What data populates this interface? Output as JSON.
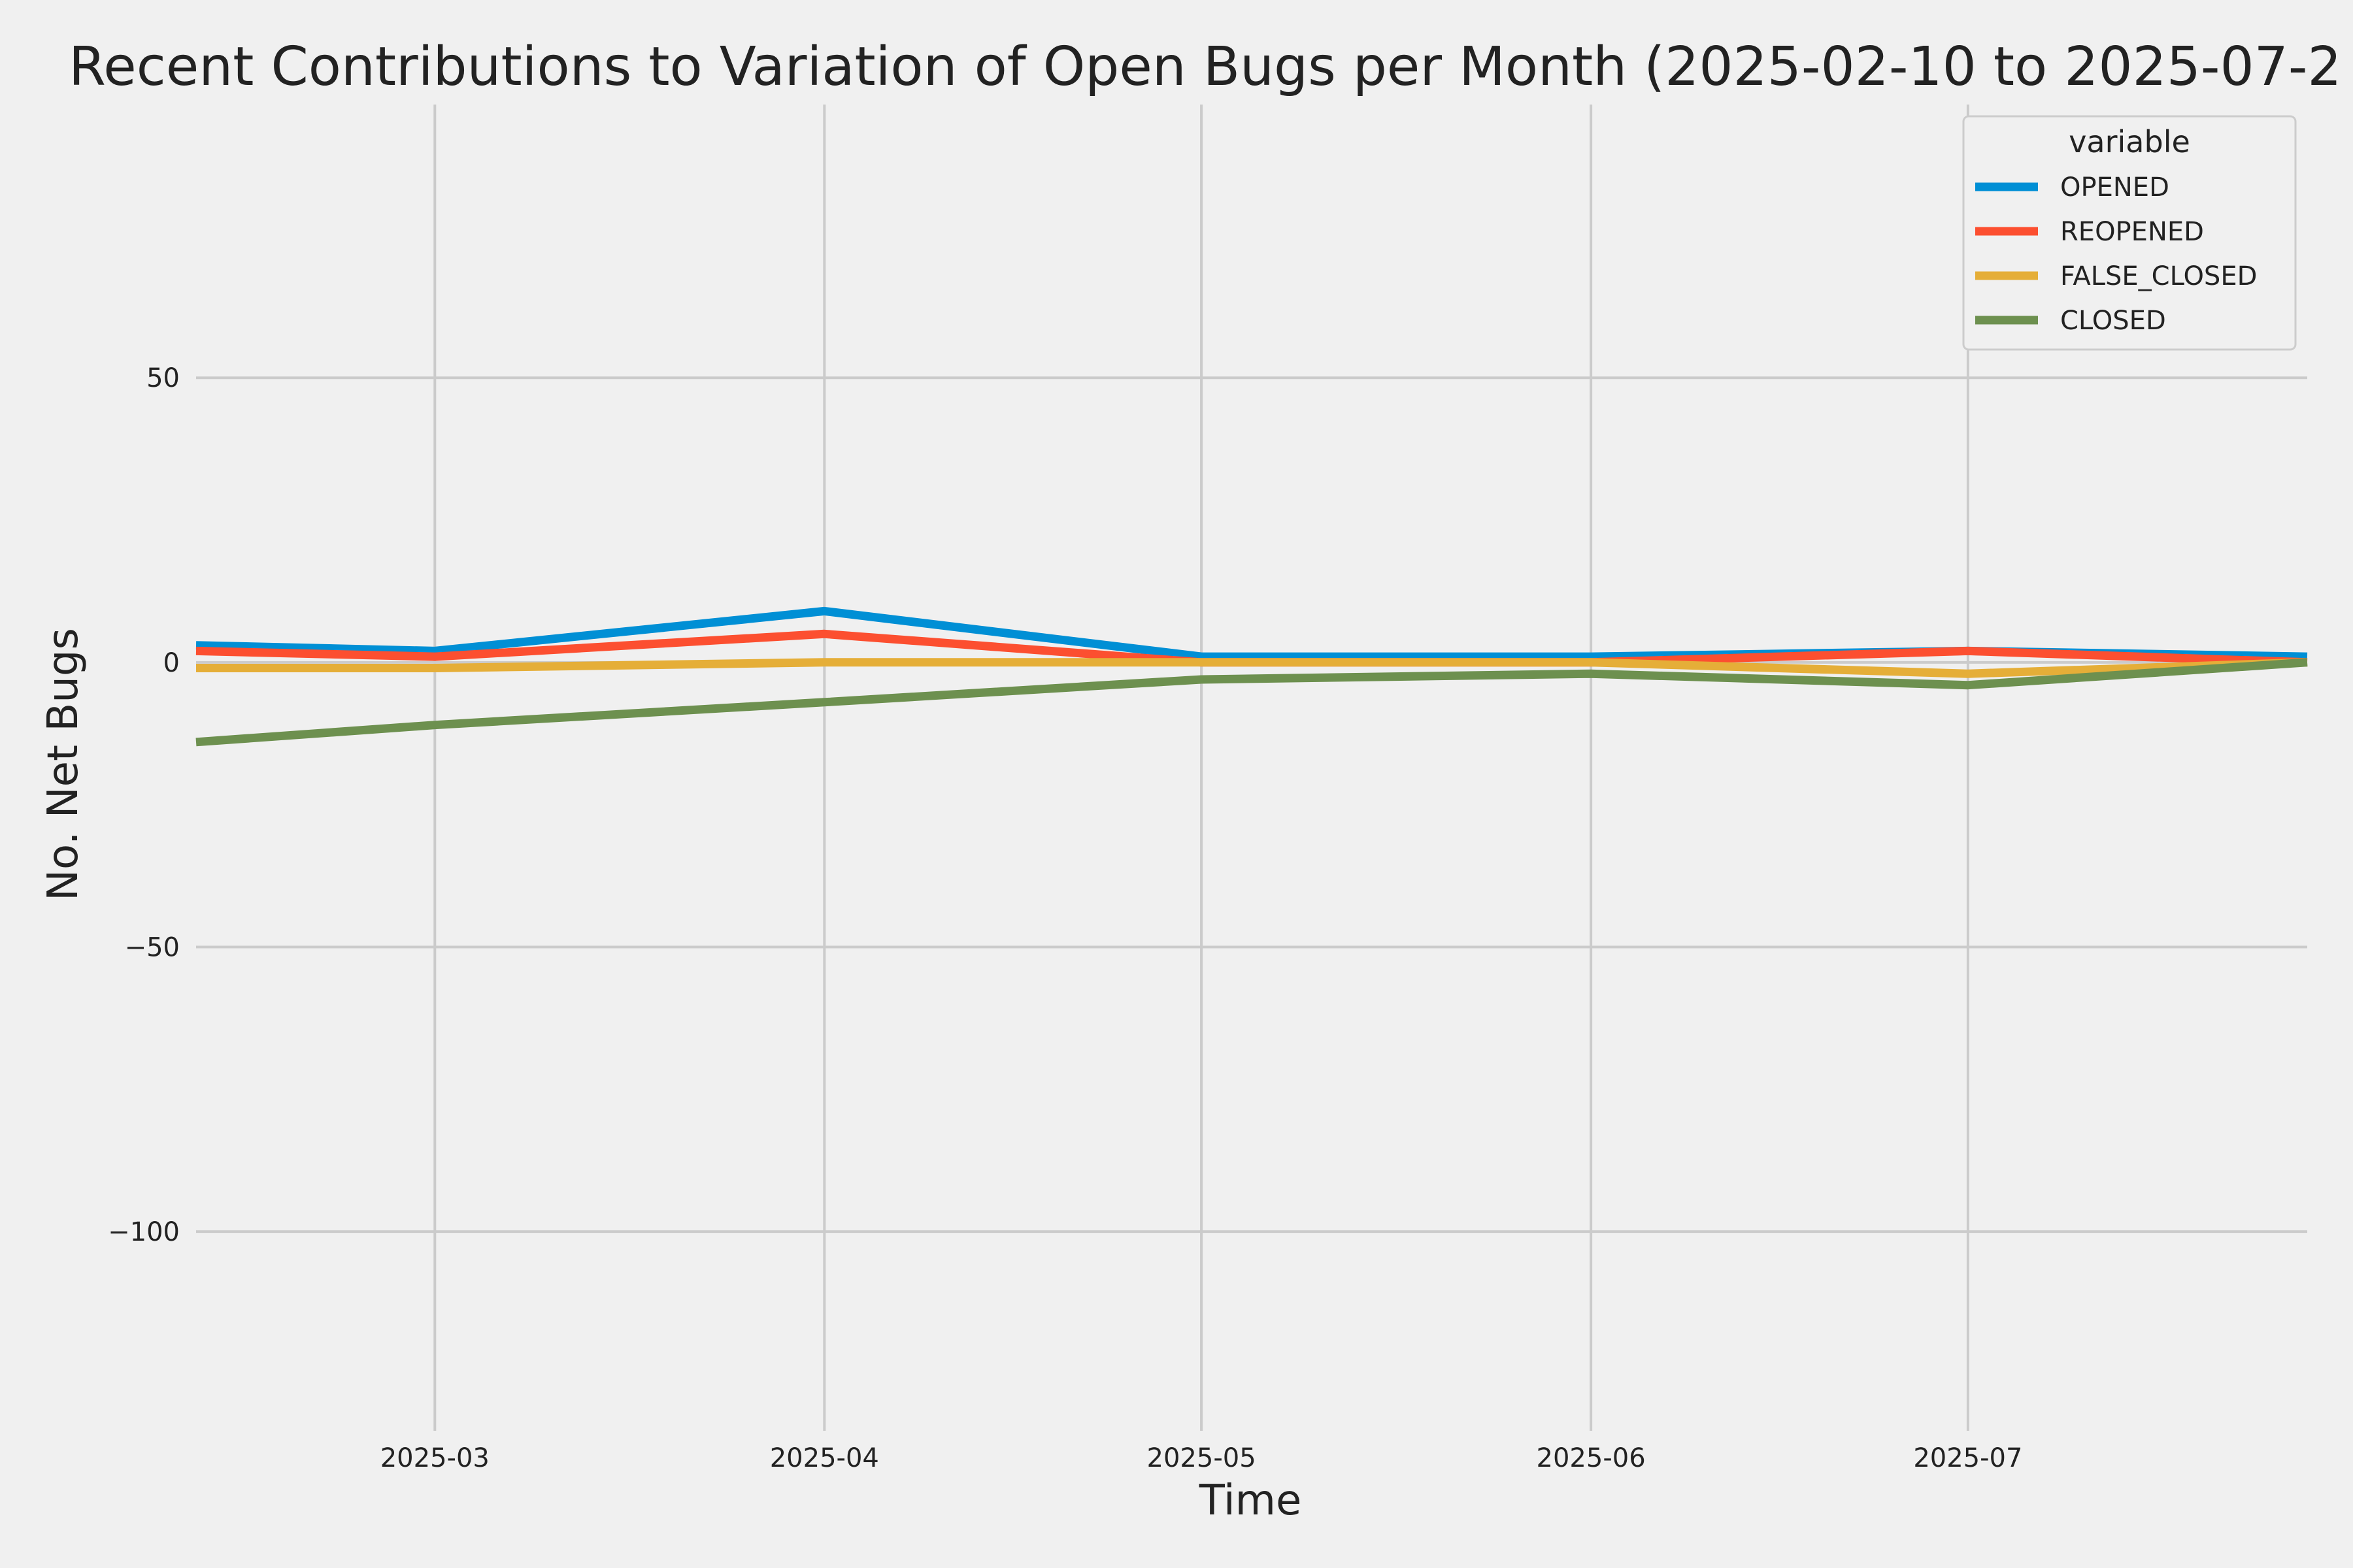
{
  "chart_data": {
    "type": "line",
    "title": "Recent Contributions to Variation of Open Bugs per Month (2025-02-10 to 2025-07-2",
    "xlabel": "Time",
    "ylabel": "No. Net Bugs",
    "x": [
      "2025-02-10",
      "2025-03-01",
      "2025-04-01",
      "2025-05-01",
      "2025-06-01",
      "2025-07-01",
      "2025-07-28"
    ],
    "xlim": [
      "2025-02-10",
      "2025-07-28"
    ],
    "ylim": [
      -135,
      98
    ],
    "xticks": [
      "2025-03-01",
      "2025-04-01",
      "2025-05-01",
      "2025-06-01",
      "2025-07-01"
    ],
    "xtick_labels": [
      "2025-03",
      "2025-04",
      "2025-05",
      "2025-06",
      "2025-07"
    ],
    "yticks": [
      50,
      0,
      -50,
      -100
    ],
    "ytick_labels": [
      "50",
      "0",
      "−50",
      "−100"
    ],
    "grid": true,
    "legend": {
      "title": "variable",
      "position": "top-right"
    },
    "series": [
      {
        "name": "OPENED",
        "color": "#008fd5",
        "values": [
          3,
          2,
          9,
          1,
          1,
          2,
          1
        ]
      },
      {
        "name": "REOPENED",
        "color": "#fc4f30",
        "values": [
          2,
          1,
          5,
          0,
          0,
          2,
          0
        ]
      },
      {
        "name": "FALSE_CLOSED",
        "color": "#e5ae38",
        "values": [
          -1,
          -1,
          0,
          0,
          0,
          -2,
          0
        ]
      },
      {
        "name": "CLOSED",
        "color": "#6d904f",
        "values": [
          -14,
          -11,
          -7,
          -3,
          -2,
          -4,
          0
        ]
      }
    ]
  }
}
